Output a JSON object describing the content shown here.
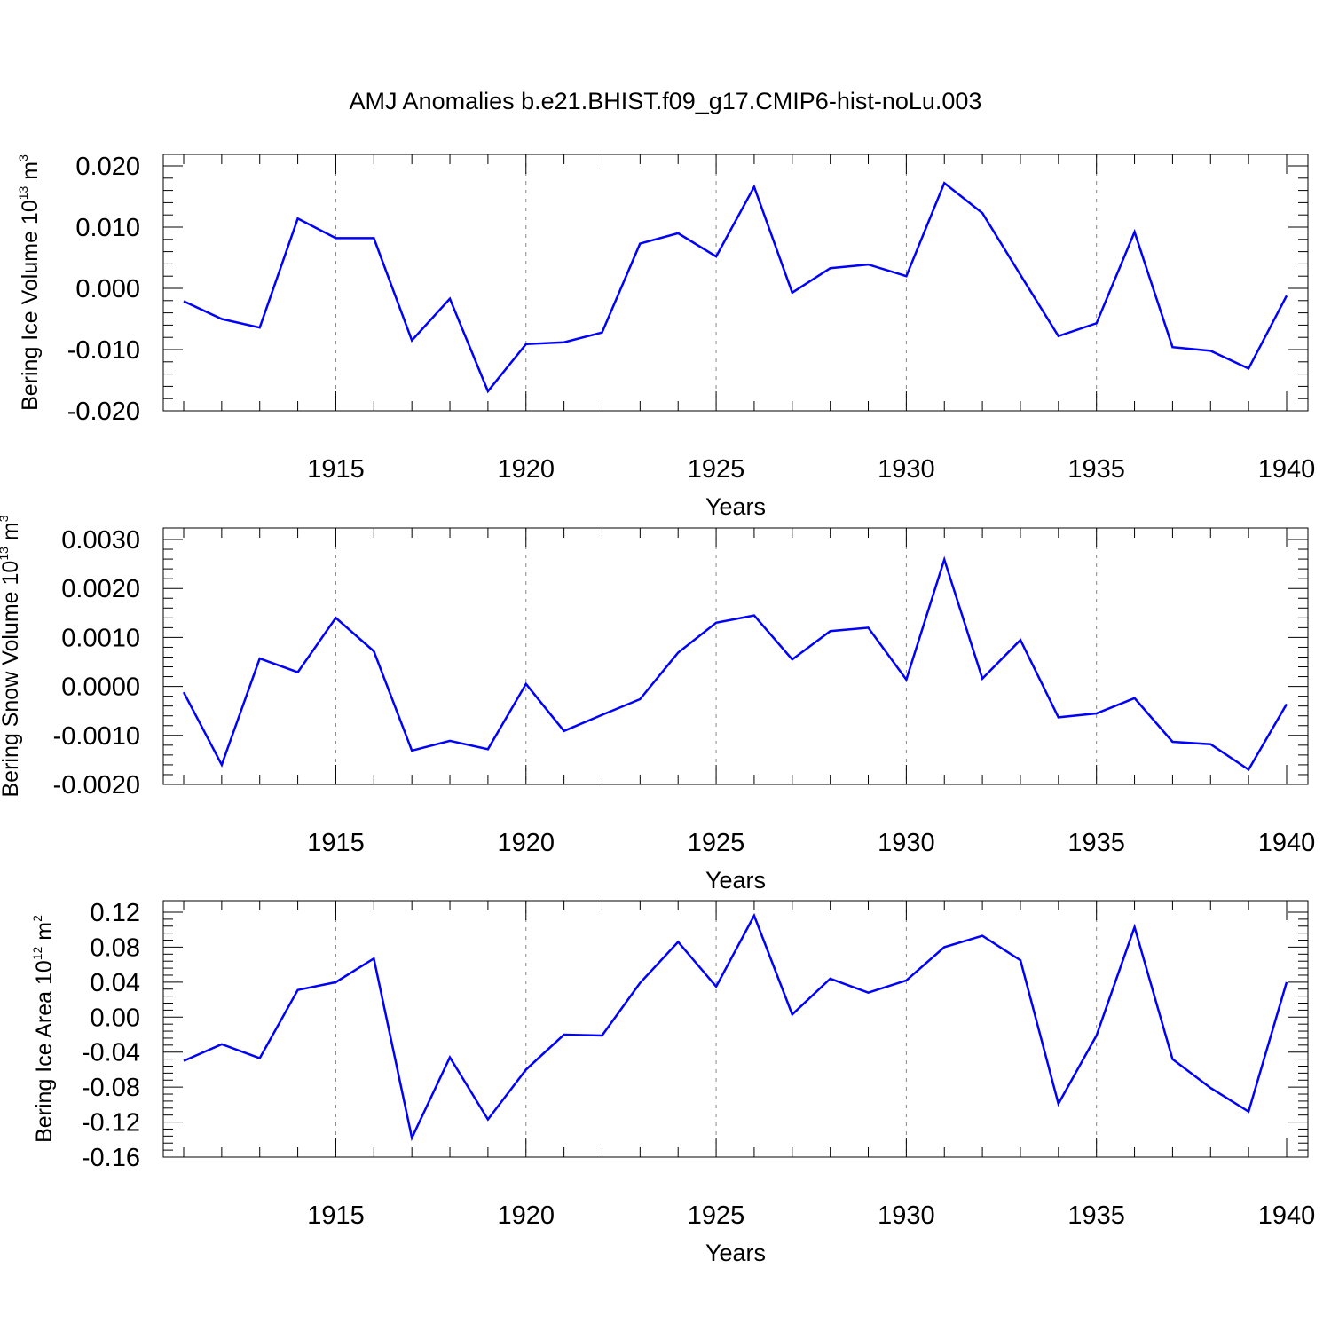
{
  "title": "AMJ Anomalies b.e21.BHIST.f09_g17.CMIP6-hist-noLu.003",
  "line_color": "#0000ff",
  "chart_data": [
    {
      "type": "line",
      "ylabel": "Bering Ice Volume 10",
      "ylabel_exp": "13",
      "ylabel_unit": " m",
      "ylabel_unit_exp": "3",
      "xlabel": "Years",
      "xlim": [
        1911,
        1940
      ],
      "ylim": [
        -0.02,
        0.02
      ],
      "yticks": [
        -0.02,
        -0.01,
        0.0,
        0.01,
        0.02
      ],
      "ytick_labels": [
        "-0.020",
        "-0.010",
        "0.000",
        "0.010",
        "0.020"
      ],
      "xticks": [
        1915,
        1920,
        1925,
        1930,
        1935,
        1940
      ],
      "xtick_labels": [
        "1915",
        "1920",
        "1925",
        "1930",
        "1935",
        "1940"
      ],
      "x": [
        1911,
        1912,
        1913,
        1914,
        1915,
        1916,
        1917,
        1918,
        1919,
        1920,
        1921,
        1922,
        1923,
        1924,
        1925,
        1926,
        1927,
        1928,
        1929,
        1930,
        1931,
        1932,
        1933,
        1934,
        1935,
        1936,
        1937,
        1938,
        1939,
        1940
      ],
      "values": [
        -0.0021,
        -0.005,
        -0.0064,
        0.0114,
        0.0082,
        0.0082,
        -0.0085,
        -0.0017,
        -0.0168,
        -0.0091,
        -0.0088,
        -0.0072,
        0.0073,
        0.009,
        0.0052,
        0.0166,
        -0.0007,
        0.0033,
        0.0039,
        0.002,
        0.0172,
        0.0123,
        0.0022,
        -0.0078,
        -0.0057,
        0.0092,
        -0.0096,
        -0.0102,
        -0.0131,
        -0.0012
      ]
    },
    {
      "type": "line",
      "ylabel": "Bering Snow Volume 10",
      "ylabel_exp": "13",
      "ylabel_unit": " m",
      "ylabel_unit_exp": "3",
      "xlabel": "Years",
      "xlim": [
        1911,
        1940
      ],
      "ylim": [
        -0.002,
        0.003
      ],
      "yticks": [
        -0.002,
        -0.001,
        0.0,
        0.001,
        0.002,
        0.003
      ],
      "ytick_labels": [
        "-0.0020",
        "-0.0010",
        "0.0000",
        "0.0010",
        "0.0020",
        "0.0030"
      ],
      "xticks": [
        1915,
        1920,
        1925,
        1930,
        1935,
        1940
      ],
      "xtick_labels": [
        "1915",
        "1920",
        "1925",
        "1930",
        "1935",
        "1940"
      ],
      "x": [
        1911,
        1912,
        1913,
        1914,
        1915,
        1916,
        1917,
        1918,
        1919,
        1920,
        1921,
        1922,
        1923,
        1924,
        1925,
        1926,
        1927,
        1928,
        1929,
        1930,
        1931,
        1932,
        1933,
        1934,
        1935,
        1936,
        1937,
        1938,
        1939,
        1940
      ],
      "values": [
        -0.00012,
        -0.0016,
        0.00057,
        0.00029,
        0.0014,
        0.00072,
        -0.00131,
        -0.00111,
        -0.00128,
        5e-05,
        -0.00091,
        -0.00058,
        -0.00026,
        0.00069,
        0.0013,
        0.00145,
        0.00055,
        0.00113,
        0.0012,
        0.00014,
        0.00259,
        0.00016,
        0.00095,
        -0.00063,
        -0.00055,
        -0.00024,
        -0.00113,
        -0.00118,
        -0.0017,
        -0.00036
      ]
    },
    {
      "type": "line",
      "ylabel": "Bering Ice Area 10",
      "ylabel_exp": "12",
      "ylabel_unit": " m",
      "ylabel_unit_exp": "2",
      "xlabel": "Years",
      "xlim": [
        1911,
        1940
      ],
      "ylim": [
        -0.16,
        0.12
      ],
      "yticks": [
        -0.16,
        -0.12,
        -0.08,
        -0.04,
        0.0,
        0.04,
        0.08,
        0.12
      ],
      "ytick_labels": [
        "-0.16",
        "-0.12",
        "-0.08",
        "-0.04",
        "0.00",
        "0.04",
        "0.08",
        "0.12"
      ],
      "xticks": [
        1915,
        1920,
        1925,
        1930,
        1935,
        1940
      ],
      "xtick_labels": [
        "1915",
        "1920",
        "1925",
        "1930",
        "1935",
        "1940"
      ],
      "x": [
        1911,
        1912,
        1913,
        1914,
        1915,
        1916,
        1917,
        1918,
        1919,
        1920,
        1921,
        1922,
        1923,
        1924,
        1925,
        1926,
        1927,
        1928,
        1929,
        1930,
        1931,
        1932,
        1933,
        1934,
        1935,
        1936,
        1937,
        1938,
        1939,
        1940
      ],
      "values": [
        -0.05,
        -0.031,
        -0.047,
        0.031,
        0.04,
        0.067,
        -0.138,
        -0.046,
        -0.117,
        -0.06,
        -0.02,
        -0.021,
        0.039,
        0.086,
        0.035,
        0.116,
        0.003,
        0.044,
        0.028,
        0.042,
        0.08,
        0.093,
        0.065,
        -0.099,
        -0.021,
        0.103,
        -0.048,
        -0.081,
        -0.108,
        0.04
      ]
    }
  ]
}
